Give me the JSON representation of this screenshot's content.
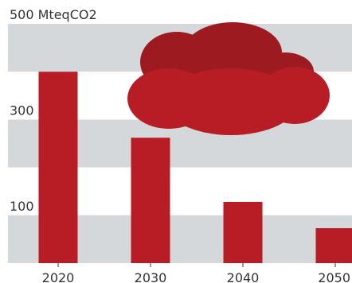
{
  "chart_data": {
    "type": "bar",
    "categories": [
      "2020",
      "2030",
      "2040",
      "2050"
    ],
    "values": [
      400,
      262,
      128,
      73
    ],
    "ylabel": "500 MteqCO2",
    "yticks": [
      {
        "value": 500,
        "label": "500 MteqCO2"
      },
      {
        "value": 300,
        "label": "300"
      },
      {
        "value": 100,
        "label": "100"
      }
    ],
    "ylim": [
      0,
      500
    ],
    "grid": "alternating horizontal bands",
    "legend": "none",
    "colors": {
      "bar": "#b81d25",
      "band": "#d5d8da",
      "cloud_dark": "#9c1a20",
      "cloud_light": "#b81d25"
    }
  }
}
